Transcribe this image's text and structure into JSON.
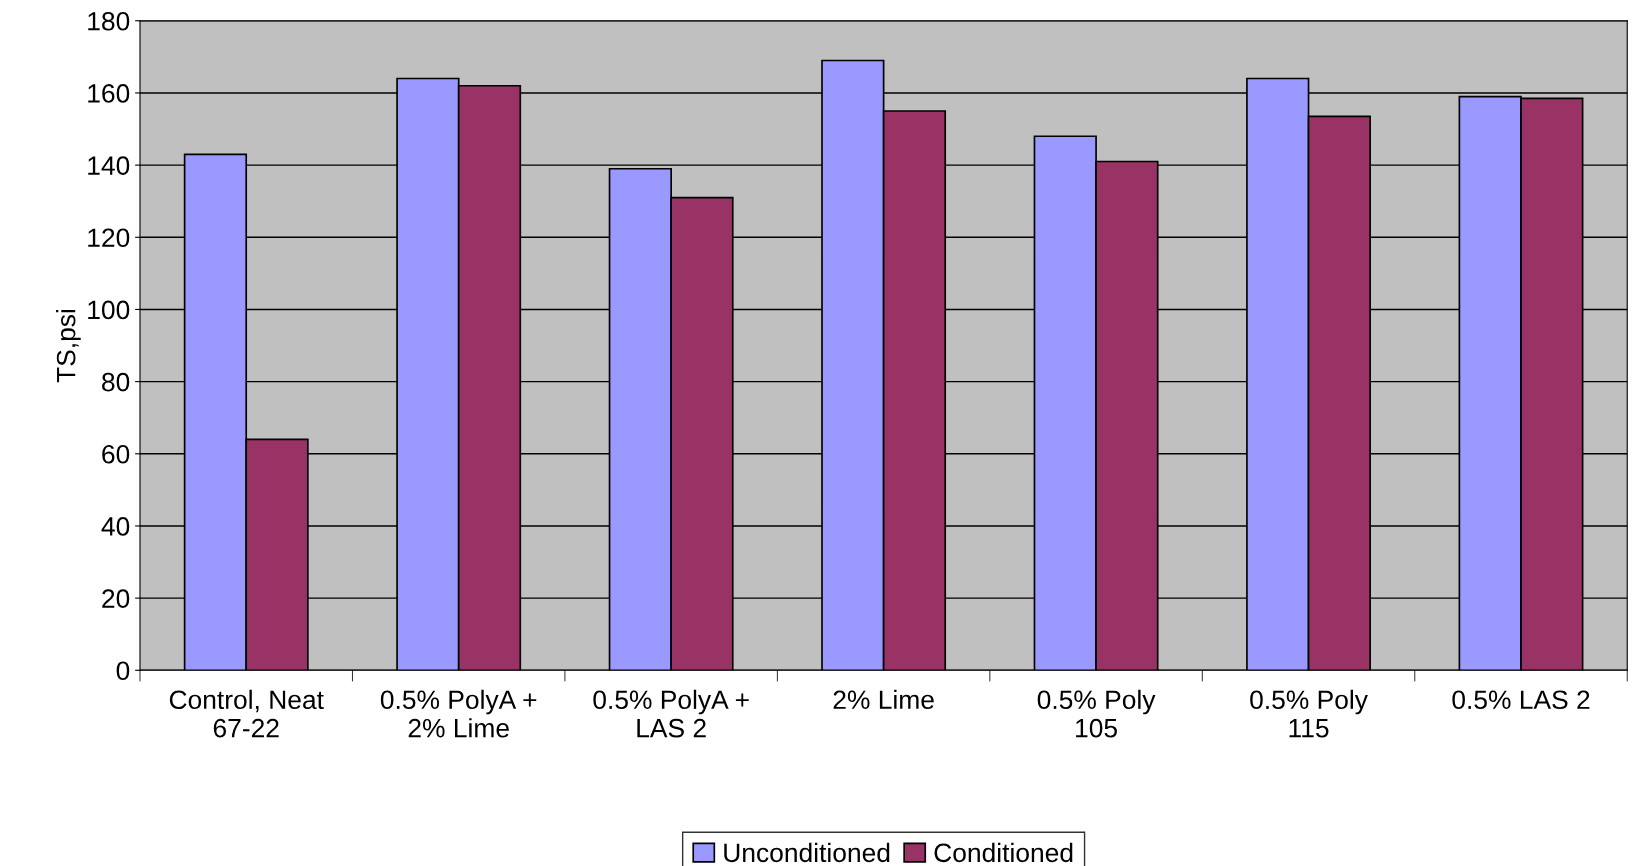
{
  "chart_data": {
    "type": "bar",
    "ylabel": "TS,psi",
    "categories": [
      "Control, Neat\n67-22",
      "0.5% PolyA +\n2% Lime",
      "0.5% PolyA +\nLAS 2",
      "2% Lime",
      "0.5% Poly\n105",
      "0.5% Poly\n115",
      "0.5% LAS 2"
    ],
    "series": [
      {
        "name": "Unconditioned",
        "color": "#9999ff",
        "values": [
          143,
          164,
          139,
          169,
          148,
          164,
          159
        ]
      },
      {
        "name": "Conditioned",
        "color": "#993366",
        "values": [
          64,
          162,
          131,
          155,
          141,
          153.5,
          158.5
        ]
      }
    ],
    "ylim": [
      0,
      180
    ],
    "yticks": [
      0,
      20,
      40,
      60,
      80,
      100,
      120,
      140,
      160,
      180
    ],
    "grid": "y",
    "legend": "bottom"
  }
}
